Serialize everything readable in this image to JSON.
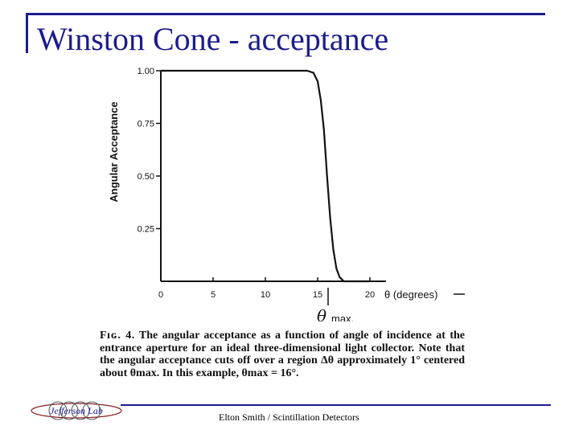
{
  "slide": {
    "title": "Winston Cone - acceptance",
    "footer": "Elton Smith / Scintillation Detectors",
    "logo_text": "Jefferson Lab",
    "accent_color": "#1c1c8c"
  },
  "chart_data": {
    "type": "line",
    "title": "",
    "xlabel": "θ (degrees)",
    "ylabel": "Angular Acceptance",
    "xlim": [
      0,
      20
    ],
    "ylim": [
      0,
      1.0
    ],
    "x_ticks": [
      "0",
      "5",
      "10",
      "15",
      "20"
    ],
    "y_ticks": [
      "1.00",
      "0.75",
      "0.50",
      "0.25"
    ],
    "y_tick_values": [
      1.0,
      0.75,
      0.5,
      0.25
    ],
    "x_tick_values": [
      0,
      5,
      10,
      15,
      20
    ],
    "series": [
      {
        "x": [
          0,
          10,
          14.0,
          14.6,
          15.0,
          15.3,
          15.6,
          15.9,
          16.2,
          16.5,
          16.8,
          17.1,
          17.5,
          18.0,
          20.0
        ],
        "y": [
          1.0,
          1.0,
          1.0,
          0.99,
          0.95,
          0.86,
          0.72,
          0.5,
          0.3,
          0.15,
          0.06,
          0.02,
          0.0,
          0.0,
          0.0
        ]
      }
    ],
    "annotations": {
      "theta_max_symbol": "θ",
      "theta_max_suffix": "max.",
      "theta_max_value": 16
    },
    "grid": false
  },
  "caption": {
    "lead": "Fɪɢ. 4.",
    "text": "The angular acceptance as a function of angle of incidence at the entrance aperture for an ideal three-dimensional light collector. Note that the angular acceptance cuts off over a region Δθ approximately 1° centered about θmax. In this example, θmax = 16°."
  }
}
